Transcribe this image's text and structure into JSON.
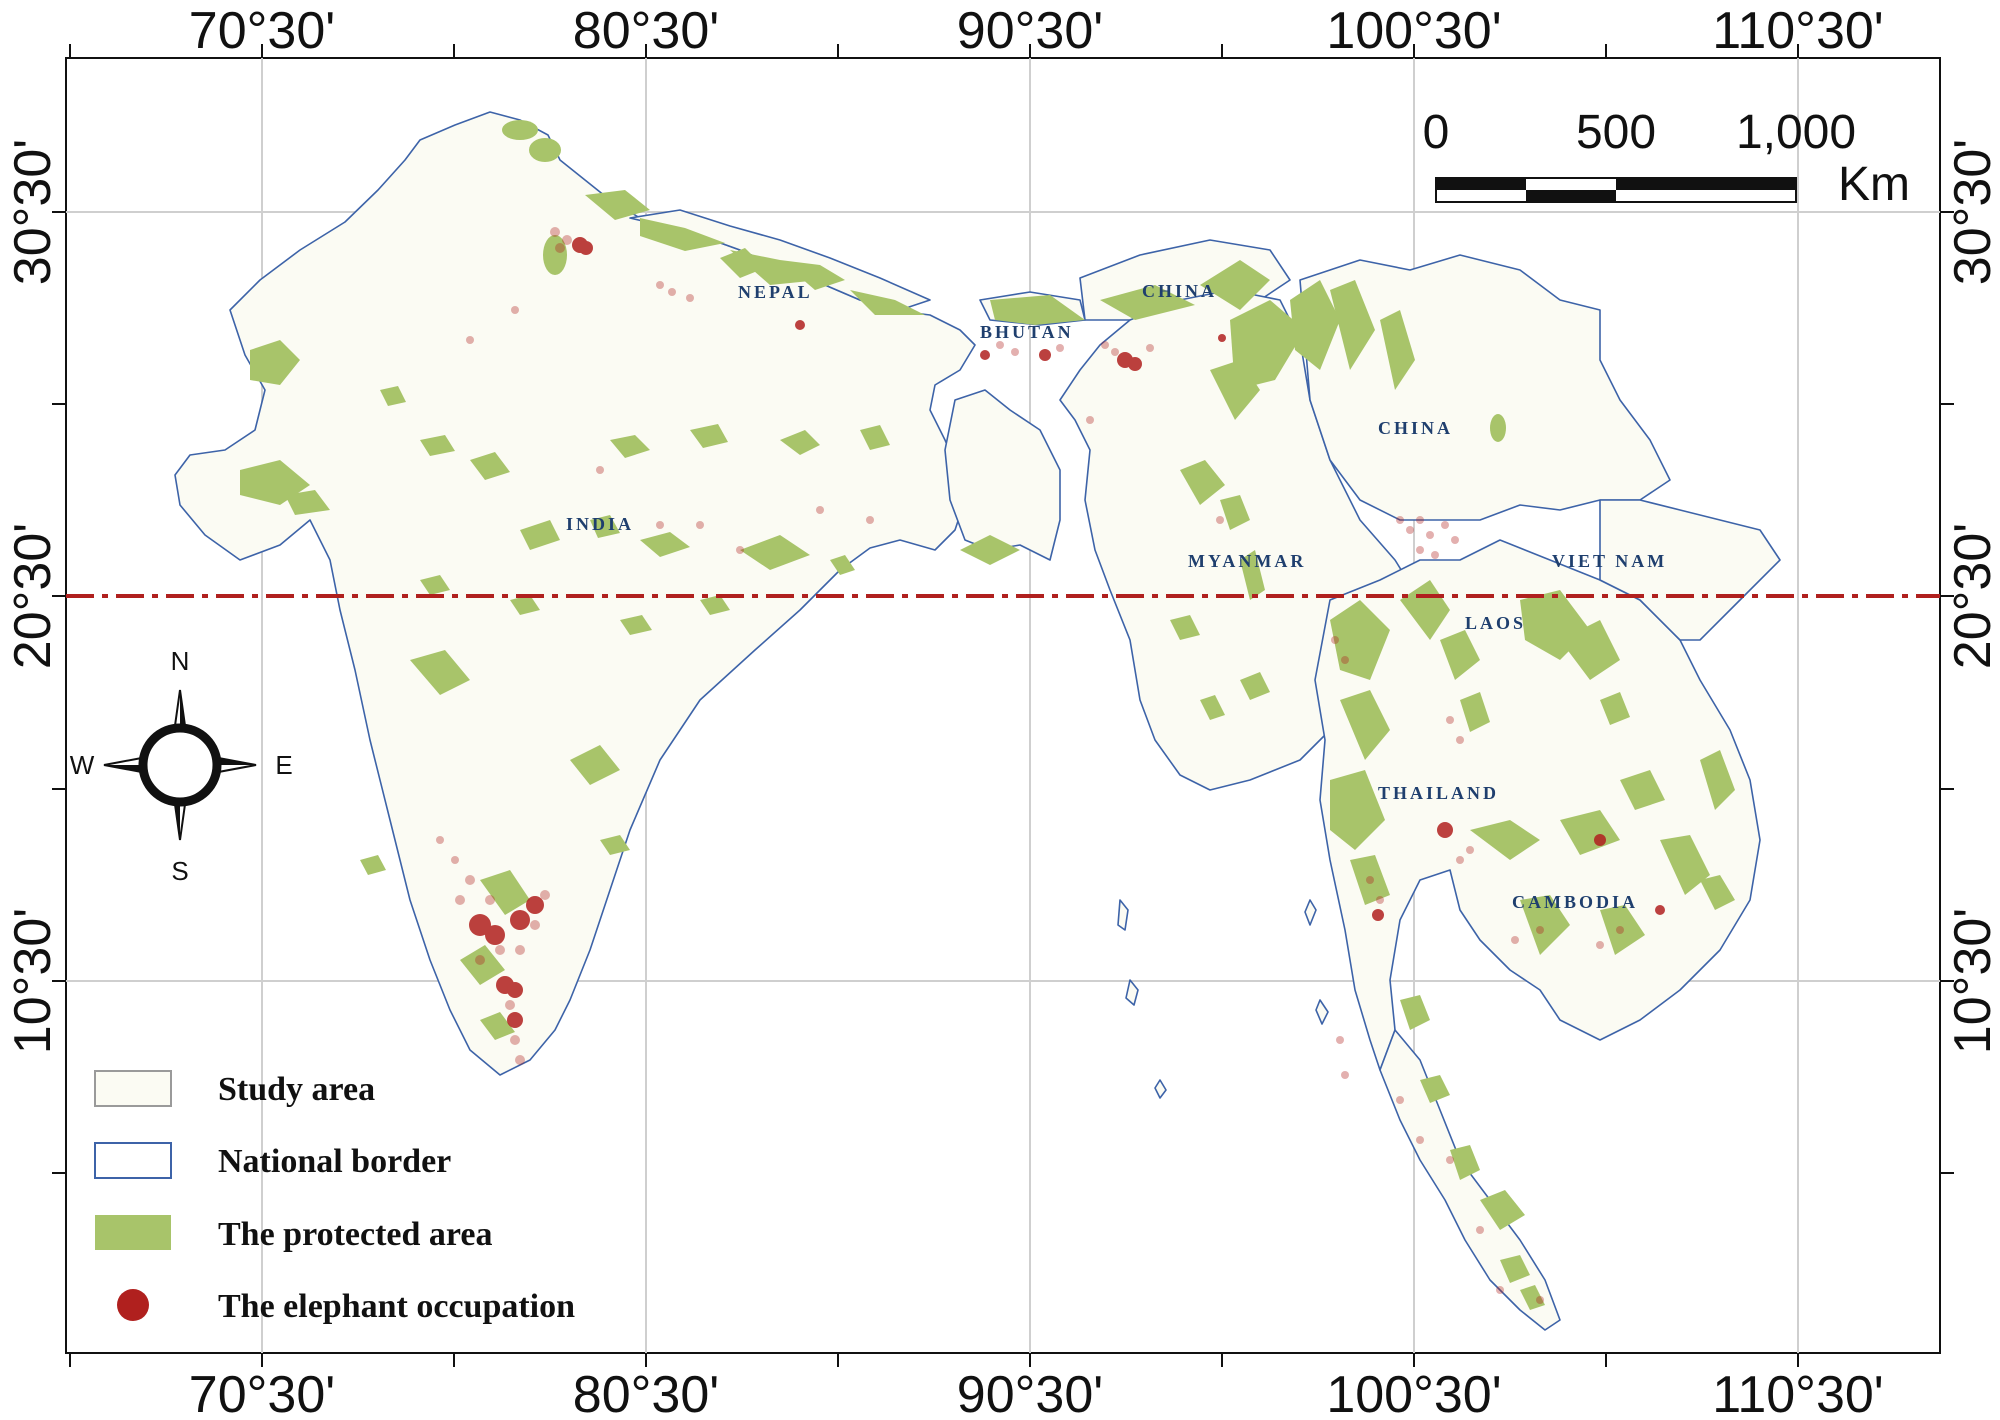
{
  "map": {
    "top_ticks": [
      "70°30'",
      "80°30'",
      "90°30'",
      "100°30'",
      "110°30'"
    ],
    "bottom_ticks": [
      "70°30'",
      "80°30'",
      "90°30'",
      "100°30'",
      "110°30'"
    ],
    "left_ticks": [
      "30°30'",
      "20°30'",
      "10°30'"
    ],
    "right_ticks": [
      "30°30'",
      "20°30'",
      "10°30'"
    ],
    "countries": [
      "NEPAL",
      "CHINA",
      "BHUTAN",
      "CHINA",
      "INDIA",
      "MYANMAR",
      "VIET NAM",
      "LAOS",
      "THAILAND",
      "CAMBODIA"
    ],
    "scale_bar": {
      "labels": [
        "0",
        "500",
        "1,000"
      ],
      "unit": "Km"
    },
    "compass": {
      "n": "N",
      "s": "S",
      "e": "E",
      "w": "W"
    },
    "legend": [
      {
        "label": "Study area",
        "color": "#fbfbf3",
        "border": "#9a9a9a"
      },
      {
        "label": "National border",
        "color": "#ffffff",
        "border": "#3d63a8"
      },
      {
        "label": "The protected area",
        "color": "#a8c46a",
        "border": "#a8c46a"
      },
      {
        "label": "The elephant occupation",
        "color": "#b0201e",
        "border": "#b0201e"
      }
    ],
    "colors": {
      "land": "#fbfbf3",
      "protected": "#a8c46a",
      "border": "#3d63a8",
      "occupation": "#b0201e",
      "divider_line": "#b0201e",
      "graticule": "#cfcfcf"
    }
  }
}
